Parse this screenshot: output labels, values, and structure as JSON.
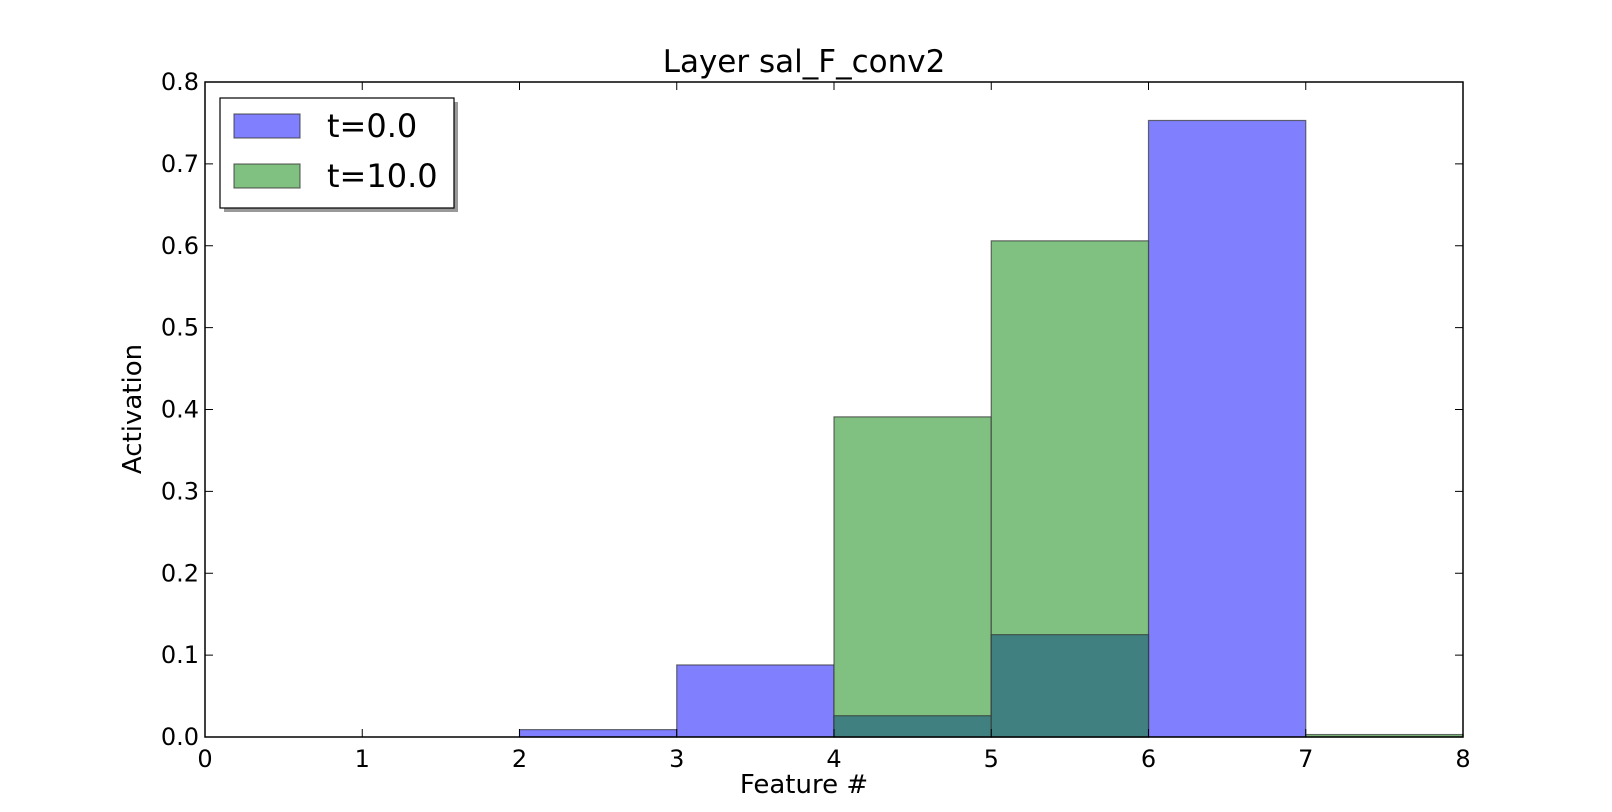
{
  "chart_data": {
    "type": "bar",
    "title": "Layer sal_F_conv2",
    "xlabel": "Feature #",
    "ylabel": "Activation",
    "xlim": [
      0,
      8
    ],
    "ylim": [
      0,
      0.8
    ],
    "x_ticks": [
      "0",
      "1",
      "2",
      "3",
      "4",
      "5",
      "6",
      "7",
      "8"
    ],
    "y_ticks": [
      "0.0",
      "0.1",
      "0.2",
      "0.3",
      "0.4",
      "0.5",
      "0.6",
      "0.7",
      "0.8"
    ],
    "legend_position": "top-left",
    "grid": false,
    "series": [
      {
        "name": "t=0.0",
        "color": "#8080ff",
        "bins": [
          {
            "start": 0,
            "end": 1,
            "value": 0.0
          },
          {
            "start": 1,
            "end": 2,
            "value": 0.0
          },
          {
            "start": 2,
            "end": 3,
            "value": 0.009
          },
          {
            "start": 3,
            "end": 4,
            "value": 0.088
          },
          {
            "start": 4,
            "end": 5,
            "value": 0.026
          },
          {
            "start": 5,
            "end": 6,
            "value": 0.125
          },
          {
            "start": 6,
            "end": 7,
            "value": 0.753
          },
          {
            "start": 7,
            "end": 8,
            "value": 0.0
          }
        ]
      },
      {
        "name": "t=10.0",
        "color": "#80c080",
        "bins": [
          {
            "start": 0,
            "end": 1,
            "value": 0.0
          },
          {
            "start": 1,
            "end": 2,
            "value": 0.0
          },
          {
            "start": 2,
            "end": 3,
            "value": 0.0
          },
          {
            "start": 3,
            "end": 4,
            "value": 0.0
          },
          {
            "start": 4,
            "end": 5,
            "value": 0.391
          },
          {
            "start": 5,
            "end": 6,
            "value": 0.606
          },
          {
            "start": 6,
            "end": 7,
            "value": 0.0
          },
          {
            "start": 7,
            "end": 8,
            "value": 0.003
          }
        ]
      }
    ],
    "overlap_color": "#408080"
  }
}
